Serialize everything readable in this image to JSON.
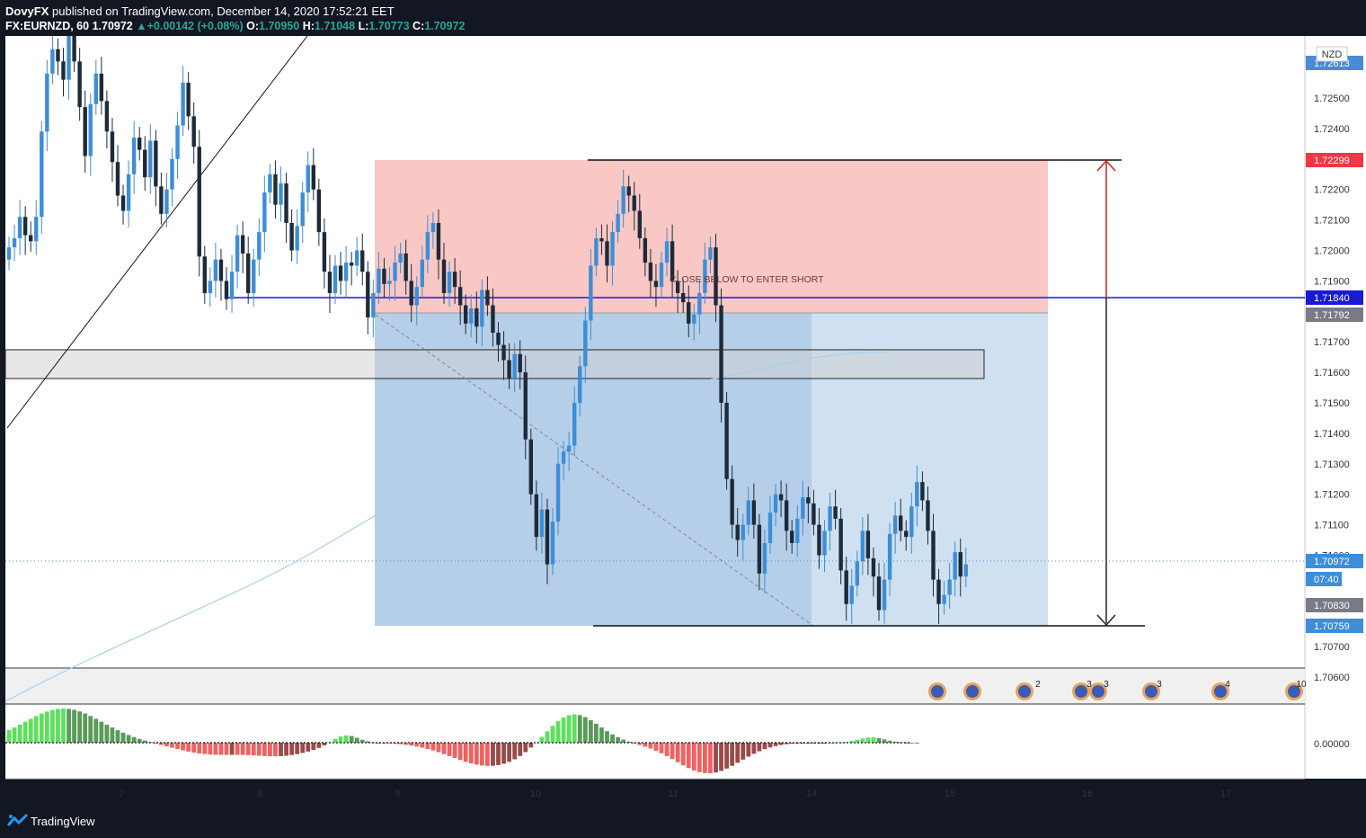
{
  "header": {
    "author": "DovyFX",
    "published_text": "published on TradingView.com, December 14, 2020 17:52:21 EET",
    "symbol": "FX:EURNZD, 60",
    "last": "1.70972",
    "change": "+0.00142 (+0.08%)",
    "o_label": "O:",
    "o_value": "1.70950",
    "h_label": "H:",
    "h_value": "1.71048",
    "l_label": "L:",
    "l_value": "1.70773",
    "c_label": "C:",
    "c_value": "1.70972"
  },
  "footer": {
    "brand": "TradingView"
  },
  "colors": {
    "up": "#3d8ed9",
    "down": "#1e2a3a",
    "target_zone": "#f9c8c4",
    "stop_zone": "#5d95cc",
    "stop_zone_light": "#cfe0f1",
    "level_line": "#1a1ad6",
    "osc_up_strong": "#5ee05e",
    "osc_up_weak": "#5a9a5a",
    "osc_down_strong": "#f26060",
    "osc_down_weak": "#9a4a4a"
  },
  "chart_data": {
    "type": "candlestick",
    "symbol": "FX:EURNZD",
    "timeframe": "60",
    "currency": "NZD",
    "x": {
      "tick_labels": [
        "7",
        "8",
        "9",
        "10",
        "11",
        "14",
        "15",
        "16",
        "17"
      ]
    },
    "y": {
      "ylim": [
        1.7052,
        1.7272
      ],
      "tick_labels": [
        "1.72500",
        "1.72400",
        "1.72200",
        "1.72100",
        "1.72000",
        "1.71900",
        "1.71700",
        "1.71600",
        "1.71500",
        "1.71400",
        "1.71300",
        "1.71200",
        "1.71100",
        "1.71000",
        "1.70700",
        "1.70600"
      ]
    },
    "price_tags": [
      {
        "label": "1.72613",
        "value": 1.72613,
        "color": "#4a8ad8"
      },
      {
        "label": "1.72299",
        "value": 1.72299,
        "color": "#f23645"
      },
      {
        "label": "1.71840",
        "value": 1.7184,
        "color": "#1a1ad6"
      },
      {
        "label": "1.71792",
        "value": 1.71792,
        "color": "#787b86"
      },
      {
        "label": "1.70972",
        "value": 1.70972,
        "color": "#3d8ed9"
      },
      {
        "label": "07:40",
        "value": 1.70903,
        "color": "#3d8ed9"
      },
      {
        "label": "1.70830",
        "value": 1.7083,
        "color": "#787b86"
      },
      {
        "label": "1.70759",
        "value": 1.70759,
        "color": "#3d8ed9"
      }
    ],
    "levels": {
      "target_top": 1.72299,
      "entry": 1.71792,
      "stop_bottom": 1.70759,
      "breakout_line": 1.7184
    },
    "annotation": "CLOSE BELOW TO ENTER SHORT",
    "oscillator": {
      "zero_label": "0.00000"
    },
    "event_markers": [
      "2",
      "3",
      "3",
      "3",
      "4",
      "10"
    ]
  }
}
